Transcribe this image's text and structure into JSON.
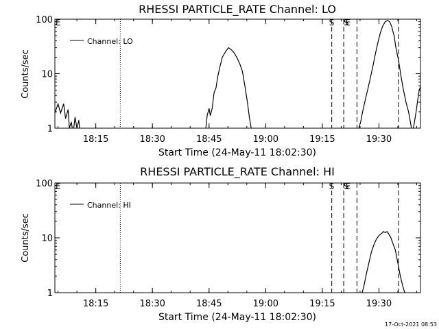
{
  "timestamp": "17-Oct-2021 08:53",
  "chart_data": [
    {
      "type": "line",
      "title": "RHESSI PARTICLE_RATE Channel: LO",
      "xlabel": "Start Time (24-May-11 18:02:30)",
      "ylabel": "Counts/sec",
      "yscale": "log",
      "ylim": [
        1,
        100
      ],
      "xlim": [
        "18:04:10",
        "19:41:00"
      ],
      "xticks": [
        "18:15",
        "18:30",
        "18:45",
        "19:00",
        "19:15",
        "19:30"
      ],
      "yticks": [
        "1",
        "10",
        "100"
      ],
      "legend": "Channel: LO",
      "legend_position": "top-left",
      "corner_marks": [
        {
          "label": "E",
          "time": "18:04:10"
        },
        {
          "label": "S",
          "time": "19:17:30"
        },
        {
          "label": "S",
          "time": "19:21:20"
        },
        {
          "label": "E",
          "time": "19:21:50"
        }
      ],
      "vlines": [
        {
          "time": "18:21:30",
          "style": "dotted"
        },
        {
          "time": "19:17:30",
          "style": "dashed"
        },
        {
          "time": "19:20:40",
          "style": "dashed"
        },
        {
          "time": "19:24:10",
          "style": "dashed"
        },
        {
          "time": "19:35:10",
          "style": "dashed"
        },
        {
          "time": "19:41:00",
          "style": "dotted"
        }
      ],
      "series": [
        {
          "x": [
            "18:04:10",
            "18:05:00",
            "18:05:40",
            "18:06:30",
            "18:07:00",
            "18:07:40",
            "18:08:00",
            "18:08:30",
            "18:09:00",
            "18:09:30",
            "18:10:00",
            "18:10:30",
            "18:10:50",
            "18:44:00",
            "18:44:30",
            "18:45:00",
            "18:45:20",
            "18:45:50",
            "18:46:20",
            "18:46:50",
            "18:47:20",
            "18:47:50",
            "18:48:30",
            "18:49:10",
            "18:49:40",
            "18:50:10",
            "18:51:00",
            "18:51:40",
            "18:52:30",
            "18:53:10",
            "18:53:50",
            "18:54:30",
            "18:55:10",
            "18:55:40",
            "18:56:10",
            "18:56:50",
            "19:24:10",
            "19:24:40",
            "19:25:10",
            "19:25:40",
            "19:26:20",
            "19:27:00",
            "19:27:40",
            "19:28:20",
            "19:29:00",
            "19:29:40",
            "19:30:20",
            "19:31:00",
            "19:31:40",
            "19:32:20",
            "19:32:50",
            "19:33:20",
            "19:34:00",
            "19:34:30",
            "19:35:10",
            "19:35:50",
            "19:36:30",
            "19:37:10",
            "19:37:50",
            "19:38:20",
            "19:38:50",
            "19:39:20",
            "19:39:50",
            "19:40:20",
            "19:40:40",
            "19:41:00"
          ],
          "y": [
            1.9,
            2.8,
            1.9,
            2.8,
            1.5,
            2.2,
            1.0,
            1.3,
            0.8,
            1.6,
            1.0,
            1.4,
            0.8,
            0.8,
            1.7,
            2.3,
            1.7,
            2.3,
            4.5,
            5.5,
            9,
            13,
            20,
            24,
            27,
            30,
            27,
            24,
            19,
            15,
            11,
            6,
            3,
            1.6,
            1.0,
            0.8,
            0.8,
            1.0,
            1.3,
            2.0,
            3.2,
            5,
            8,
            13,
            22,
            36,
            55,
            75,
            90,
            95,
            90,
            75,
            50,
            30,
            18,
            9,
            5,
            3,
            2,
            1.3,
            0.8,
            1.2,
            2,
            3.5,
            5,
            5.8
          ]
        }
      ]
    },
    {
      "type": "line",
      "title": "RHESSI PARTICLE_RATE Channel: HI",
      "xlabel": "Start Time (24-May-11 18:02:30)",
      "ylabel": "Counts/sec",
      "yscale": "log",
      "ylim": [
        1,
        100
      ],
      "xlim": [
        "18:04:10",
        "19:41:00"
      ],
      "xticks": [
        "18:15",
        "18:30",
        "18:45",
        "19:00",
        "19:15",
        "19:30"
      ],
      "yticks": [
        "1",
        "10",
        "100"
      ],
      "legend": "Channel: HI",
      "legend_position": "top-left",
      "corner_marks": [
        {
          "label": "E",
          "time": "18:04:10"
        },
        {
          "label": "S",
          "time": "19:17:30"
        },
        {
          "label": "S",
          "time": "19:21:20"
        },
        {
          "label": "E",
          "time": "19:21:50"
        }
      ],
      "vlines": [
        {
          "time": "18:21:30",
          "style": "dotted"
        },
        {
          "time": "19:17:30",
          "style": "dashed"
        },
        {
          "time": "19:20:40",
          "style": "dashed"
        },
        {
          "time": "19:24:10",
          "style": "dashed"
        },
        {
          "time": "19:35:10",
          "style": "dashed"
        },
        {
          "time": "19:41:00",
          "style": "dotted"
        }
      ],
      "series": [
        {
          "x": [
            "19:25:10",
            "19:26:00",
            "19:26:40",
            "19:27:20",
            "19:28:00",
            "19:28:40",
            "19:29:20",
            "19:30:00",
            "19:30:40",
            "19:31:10",
            "19:31:40",
            "19:32:10",
            "19:32:40",
            "19:33:10",
            "19:33:40",
            "19:34:20",
            "19:35:00",
            "19:35:40",
            "19:36:20",
            "19:36:50",
            "19:37:10"
          ],
          "y": [
            0.8,
            1.3,
            2.2,
            3.5,
            5.5,
            7.5,
            9.5,
            11,
            12,
            13,
            12.5,
            13,
            11.5,
            10,
            8,
            6,
            3.5,
            2,
            1.3,
            1.0,
            0.8
          ]
        }
      ]
    }
  ]
}
